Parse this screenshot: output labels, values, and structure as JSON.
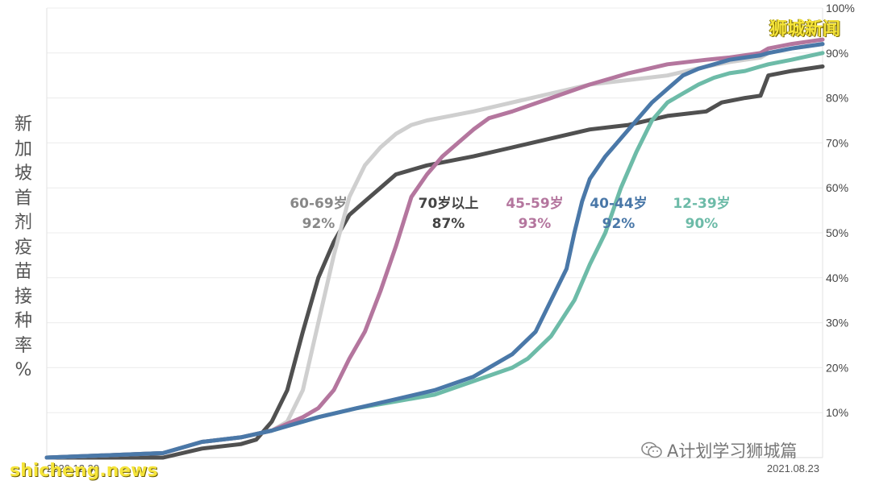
{
  "chart_data": {
    "type": "line",
    "title": "",
    "xlabel": "",
    "ylabel": "新加坡首剂疫苗接种率%",
    "x_range": [
      "2020.12.30",
      "2021.08.23"
    ],
    "x_ticks": [
      "2020.12.30",
      "2021.08.23"
    ],
    "y_ticks": [
      "10%",
      "20%",
      "30%",
      "40%",
      "50%",
      "60%",
      "70%",
      "80%",
      "90%",
      "100%"
    ],
    "ylim": [
      0,
      100
    ],
    "y_unit": "%",
    "grid": true,
    "series": [
      {
        "name": "70岁以上",
        "final": "87%",
        "color": "#505050",
        "x": [
          0,
          0.15,
          0.2,
          0.25,
          0.27,
          0.29,
          0.31,
          0.33,
          0.35,
          0.37,
          0.39,
          0.41,
          0.43,
          0.45,
          0.47,
          0.49,
          0.52,
          0.55,
          0.6,
          0.65,
          0.7,
          0.75,
          0.8,
          0.85,
          0.87,
          0.9,
          0.92,
          0.93,
          0.96,
          1.0
        ],
        "y": [
          0,
          0,
          2,
          3,
          4,
          8,
          15,
          28,
          40,
          48,
          54,
          57,
          60,
          63,
          64,
          65,
          66,
          67,
          69,
          71,
          73,
          74,
          76,
          77,
          79,
          80,
          80.5,
          85,
          86,
          87
        ]
      },
      {
        "name": "60-69岁",
        "final": "92%",
        "color": "#cfcfcf",
        "x": [
          0,
          0.15,
          0.2,
          0.25,
          0.29,
          0.31,
          0.33,
          0.35,
          0.37,
          0.39,
          0.41,
          0.43,
          0.45,
          0.47,
          0.49,
          0.52,
          0.55,
          0.6,
          0.65,
          0.7,
          0.75,
          0.8,
          0.85,
          0.88,
          0.9,
          0.92,
          0.93,
          0.96,
          1.0
        ],
        "y": [
          0,
          1,
          3.5,
          4.5,
          6,
          8,
          15,
          30,
          45,
          58,
          65,
          69,
          72,
          74,
          75,
          76,
          77,
          79,
          81,
          83,
          84,
          85,
          87,
          88,
          88.5,
          89,
          90,
          91,
          92
        ]
      },
      {
        "name": "45-59岁",
        "final": "93%",
        "color": "#b4769e",
        "x": [
          0,
          0.15,
          0.2,
          0.25,
          0.29,
          0.31,
          0.33,
          0.35,
          0.37,
          0.39,
          0.41,
          0.43,
          0.45,
          0.47,
          0.49,
          0.51,
          0.53,
          0.55,
          0.57,
          0.6,
          0.65,
          0.7,
          0.75,
          0.8,
          0.85,
          0.88,
          0.9,
          0.92,
          0.93,
          0.96,
          1.0
        ],
        "y": [
          0,
          1,
          3.5,
          4.5,
          6,
          7.5,
          9,
          11,
          15,
          22,
          28,
          37,
          47,
          58,
          63,
          67,
          70,
          73,
          75.5,
          77,
          80,
          83,
          85.5,
          87.5,
          88.5,
          89,
          89.5,
          90,
          91,
          92,
          93
        ]
      },
      {
        "name": "40-44岁",
        "final": "92%",
        "color": "#4a78a8",
        "x": [
          0,
          0.15,
          0.2,
          0.25,
          0.29,
          0.31,
          0.35,
          0.4,
          0.45,
          0.5,
          0.55,
          0.6,
          0.63,
          0.65,
          0.67,
          0.68,
          0.69,
          0.7,
          0.72,
          0.74,
          0.76,
          0.78,
          0.8,
          0.82,
          0.84,
          0.86,
          0.88,
          0.9,
          0.92,
          0.93,
          0.96,
          1.0
        ],
        "y": [
          0,
          1,
          3.5,
          4.5,
          6,
          7,
          9,
          11,
          13,
          15,
          18,
          23,
          28,
          35,
          42,
          50,
          57,
          62,
          67,
          71,
          75,
          79,
          82,
          85,
          86.5,
          87.5,
          88.5,
          89,
          89.5,
          90,
          91,
          92
        ]
      },
      {
        "name": "12-39岁",
        "final": "90%",
        "color": "#6dbba8",
        "x": [
          0,
          0.15,
          0.2,
          0.25,
          0.29,
          0.31,
          0.35,
          0.4,
          0.45,
          0.5,
          0.55,
          0.6,
          0.62,
          0.65,
          0.68,
          0.7,
          0.72,
          0.74,
          0.76,
          0.78,
          0.8,
          0.82,
          0.84,
          0.86,
          0.88,
          0.9,
          0.92,
          0.93,
          0.96,
          1.0
        ],
        "y": [
          0,
          1,
          3.5,
          4.5,
          6,
          7,
          9,
          11,
          12.5,
          14,
          17,
          20,
          22,
          27,
          35,
          43,
          50,
          60,
          68,
          75,
          79,
          81,
          83,
          84.5,
          85.5,
          86,
          87,
          87.5,
          88.5,
          90
        ]
      }
    ]
  },
  "branding": {
    "top_right": "狮城新闻",
    "wechat_account": "A计划学习狮城篇",
    "watermark": "shicheng.news"
  }
}
